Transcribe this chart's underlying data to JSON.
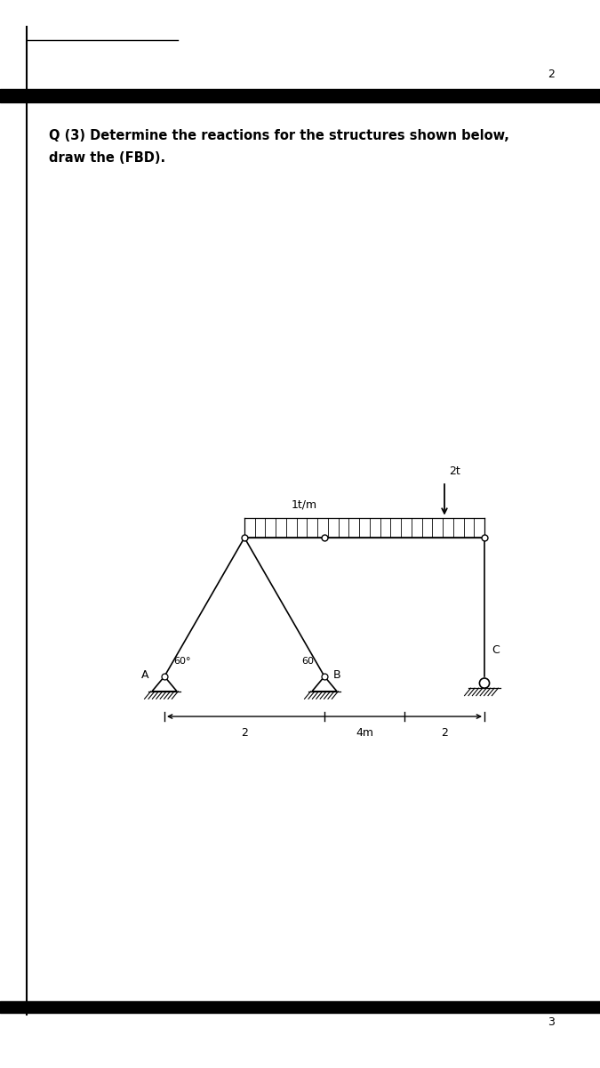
{
  "title_line1": "Q (3) Determine the reactions for the structures shown below,",
  "title_line2": "draw the (FBD).",
  "title_fontsize": 10.5,
  "page_number_top": "2",
  "page_number_bottom": "3",
  "bg_color": "#ffffff",
  "dim_label_2left": "2",
  "dim_label_4m": "4m",
  "dim_label_2right": "2",
  "load_distributed": "1t/m",
  "load_point": "2t",
  "label_A": "A",
  "label_B": "B",
  "label_C": "C",
  "angle_label_A": "60°",
  "angle_label_B": "60",
  "line_color": "#000000",
  "line_width": 1.2
}
